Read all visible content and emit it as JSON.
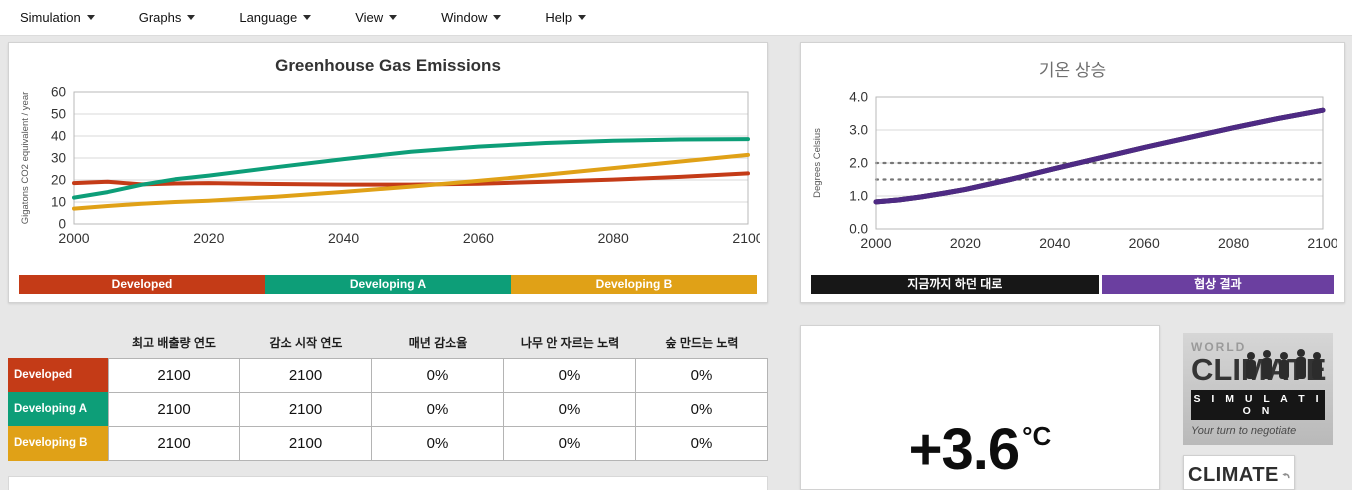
{
  "menu": {
    "items": [
      {
        "label": "Simulation"
      },
      {
        "label": "Graphs"
      },
      {
        "label": "Language"
      },
      {
        "label": "View"
      },
      {
        "label": "Window"
      },
      {
        "label": "Help"
      }
    ]
  },
  "emissions_panel": {
    "title": "Greenhouse Gas Emissions",
    "legend": [
      {
        "label": "Developed",
        "color": "#c43b17"
      },
      {
        "label": "Developing A",
        "color": "#0d9e78"
      },
      {
        "label": "Developing B",
        "color": "#e0a117"
      }
    ]
  },
  "temperature_panel": {
    "title": "기온 상승",
    "legend": [
      {
        "label": "지금까지 하던 대로",
        "color": "#171717"
      },
      {
        "label": "협상 결과",
        "color": "#6b3fa0"
      }
    ]
  },
  "table": {
    "headers": [
      "최고 배출량 연도",
      "감소 시작 연도",
      "매년 감소율",
      "나무 안 자르는 노력",
      "숲 만드는 노력"
    ],
    "rows": [
      {
        "label": "Developed",
        "color": "#c43b17",
        "values": [
          "2100",
          "2100",
          "0%",
          "0%",
          "0%"
        ]
      },
      {
        "label": "Developing A",
        "color": "#0d9e78",
        "values": [
          "2100",
          "2100",
          "0%",
          "0%",
          "0%"
        ]
      },
      {
        "label": "Developing B",
        "color": "#e0a117",
        "values": [
          "2100",
          "2100",
          "0%",
          "0%",
          "0%"
        ]
      }
    ]
  },
  "temperature_readout": {
    "value": "+3.6",
    "unit": "°C"
  },
  "logos": {
    "wcs": {
      "world": "WORLD",
      "climate": "CLIMATE",
      "simulation": "S I M U L A T I O N",
      "tagline": "Your turn to negotiate"
    },
    "ci": {
      "text": "CLIMATE"
    }
  },
  "chart_data": [
    {
      "id": "emissions",
      "type": "line",
      "title": "Greenhouse Gas Emissions",
      "xlabel": "",
      "ylabel": "Gigatons CO2 equivalent / year",
      "xlim": [
        2000,
        2100
      ],
      "ylim": [
        0,
        60
      ],
      "xticks": [
        2000,
        2020,
        2040,
        2060,
        2080,
        2100
      ],
      "yticks": [
        0,
        10,
        20,
        30,
        40,
        50,
        60
      ],
      "ytick_decimals": 0,
      "grid": true,
      "legend_position": "bottom",
      "x": [
        2000,
        2005,
        2010,
        2015,
        2020,
        2030,
        2040,
        2050,
        2060,
        2070,
        2080,
        2090,
        2100
      ],
      "series": [
        {
          "name": "Developed",
          "color": "#c43b17",
          "width": 4,
          "values": [
            18.6,
            19.2,
            18.0,
            18.4,
            18.6,
            18.2,
            17.9,
            17.9,
            18.3,
            19.2,
            20.2,
            21.4,
            23.0
          ]
        },
        {
          "name": "Developing A",
          "color": "#0d9e78",
          "width": 4,
          "values": [
            12.0,
            14.5,
            17.8,
            20.3,
            22.0,
            25.8,
            29.5,
            32.8,
            35.2,
            36.8,
            37.8,
            38.4,
            38.6
          ]
        },
        {
          "name": "Developing B",
          "color": "#e0a117",
          "width": 4,
          "values": [
            7.0,
            8.2,
            9.2,
            10.0,
            10.6,
            12.4,
            14.6,
            17.0,
            19.6,
            22.4,
            25.4,
            28.4,
            31.4
          ]
        }
      ]
    },
    {
      "id": "temperature",
      "type": "line",
      "title": "기온 상승",
      "xlabel": "",
      "ylabel": "Degrees Celsius",
      "xlim": [
        2000,
        2100
      ],
      "ylim": [
        0,
        4
      ],
      "xticks": [
        2000,
        2020,
        2040,
        2060,
        2080,
        2100
      ],
      "yticks": [
        0,
        1,
        2,
        3,
        4
      ],
      "ytick_decimals": 1,
      "grid": true,
      "reference_lines": [
        1.5,
        2.0
      ],
      "legend_position": "bottom",
      "x": [
        2000,
        2005,
        2010,
        2015,
        2020,
        2030,
        2040,
        2050,
        2060,
        2070,
        2080,
        2090,
        2100
      ],
      "series": [
        {
          "name": "지금까지 하던 대로",
          "color": "#171717",
          "width": 5,
          "values": [
            0.82,
            0.88,
            0.97,
            1.08,
            1.2,
            1.5,
            1.83,
            2.15,
            2.47,
            2.77,
            3.07,
            3.35,
            3.6
          ]
        },
        {
          "name": "협상 결과",
          "color": "#4e2a84",
          "width": 5,
          "values": [
            0.82,
            0.88,
            0.97,
            1.08,
            1.2,
            1.5,
            1.83,
            2.15,
            2.47,
            2.77,
            3.07,
            3.35,
            3.6
          ]
        }
      ]
    }
  ]
}
